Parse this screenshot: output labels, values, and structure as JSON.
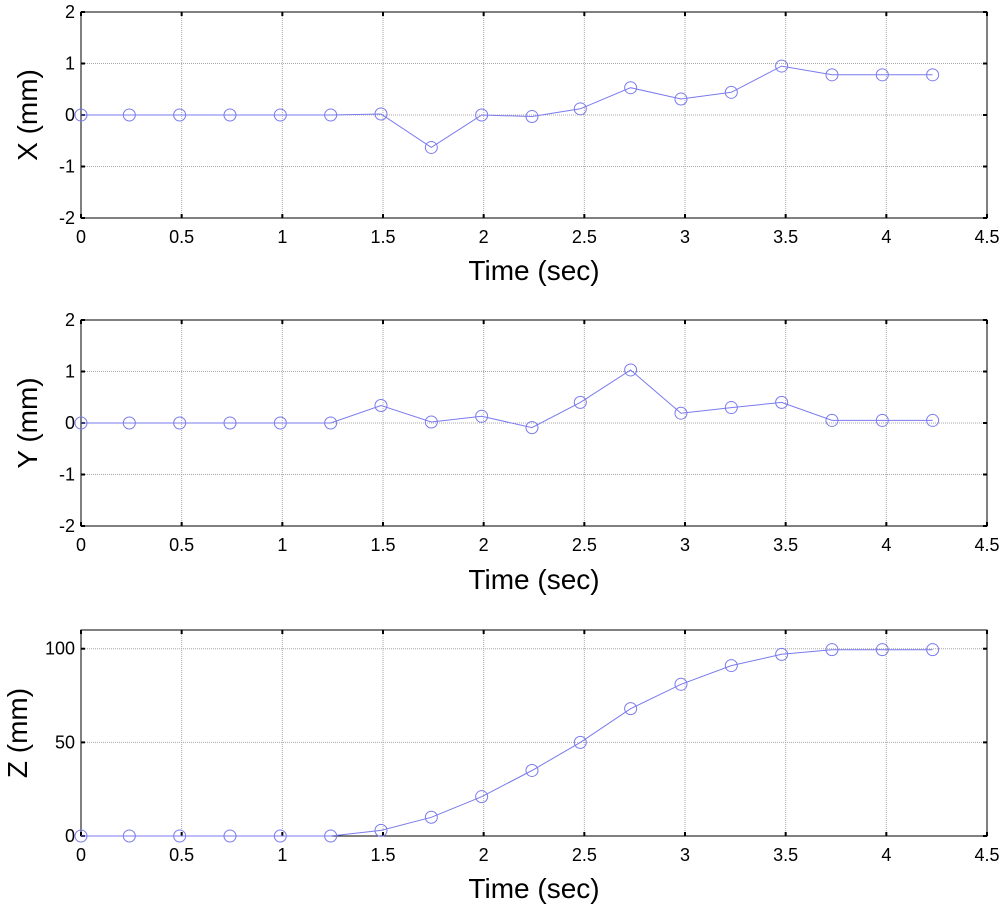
{
  "series_color": "#7a7aee",
  "chart_data": [
    {
      "type": "line",
      "ylabel": "X (mm)",
      "xlabel": "Time (sec)",
      "xlim": [
        0,
        4.5
      ],
      "ylim": [
        -2,
        2
      ],
      "xticks": [
        "0",
        "0.5",
        "1",
        "1.5",
        "2",
        "2.5",
        "3",
        "3.5",
        "4",
        "4.5"
      ],
      "yticks": [
        "-2",
        "-1",
        "0",
        "1",
        "2"
      ],
      "grid": true,
      "x": [
        0,
        0.24,
        0.49,
        0.74,
        0.99,
        1.24,
        1.49,
        1.74,
        1.99,
        2.24,
        2.48,
        2.73,
        2.98,
        3.23,
        3.48,
        3.73,
        3.98,
        4.23
      ],
      "y": [
        0,
        0,
        0,
        0,
        0,
        0,
        0.02,
        -0.63,
        0,
        -0.03,
        0.12,
        0.53,
        0.31,
        0.44,
        0.95,
        0.78,
        0.78,
        0.78
      ]
    },
    {
      "type": "line",
      "ylabel": "Y (mm)",
      "xlabel": "Time (sec)",
      "xlim": [
        0,
        4.5
      ],
      "ylim": [
        -2,
        2
      ],
      "xticks": [
        "0",
        "0.5",
        "1",
        "1.5",
        "2",
        "2.5",
        "3",
        "3.5",
        "4",
        "4.5"
      ],
      "yticks": [
        "-2",
        "-1",
        "0",
        "1",
        "2"
      ],
      "grid": true,
      "x": [
        0,
        0.24,
        0.49,
        0.74,
        0.99,
        1.24,
        1.49,
        1.74,
        1.99,
        2.24,
        2.48,
        2.73,
        2.98,
        3.23,
        3.48,
        3.73,
        3.98,
        4.23
      ],
      "y": [
        0,
        0,
        0,
        0,
        0,
        0,
        0.34,
        0.02,
        0.13,
        -0.09,
        0.4,
        1.03,
        0.19,
        0.3,
        0.4,
        0.05,
        0.05,
        0.05
      ]
    },
    {
      "type": "line",
      "ylabel": "Z (mm)",
      "xlabel": "Time (sec)",
      "xlim": [
        0,
        4.5
      ],
      "ylim": [
        0,
        110
      ],
      "xticks": [
        "0",
        "0.5",
        "1",
        "1.5",
        "2",
        "2.5",
        "3",
        "3.5",
        "4",
        "4.5"
      ],
      "yticks": [
        "0",
        "50",
        "100"
      ],
      "grid": true,
      "x": [
        0,
        0.24,
        0.49,
        0.74,
        0.99,
        1.24,
        1.49,
        1.74,
        1.99,
        2.24,
        2.48,
        2.73,
        2.98,
        3.23,
        3.48,
        3.73,
        3.98,
        4.23
      ],
      "y": [
        0,
        0,
        0,
        0,
        0,
        0,
        3,
        10,
        21,
        35,
        50,
        68,
        81,
        91,
        97,
        99.5,
        99.5,
        99.5
      ]
    }
  ]
}
